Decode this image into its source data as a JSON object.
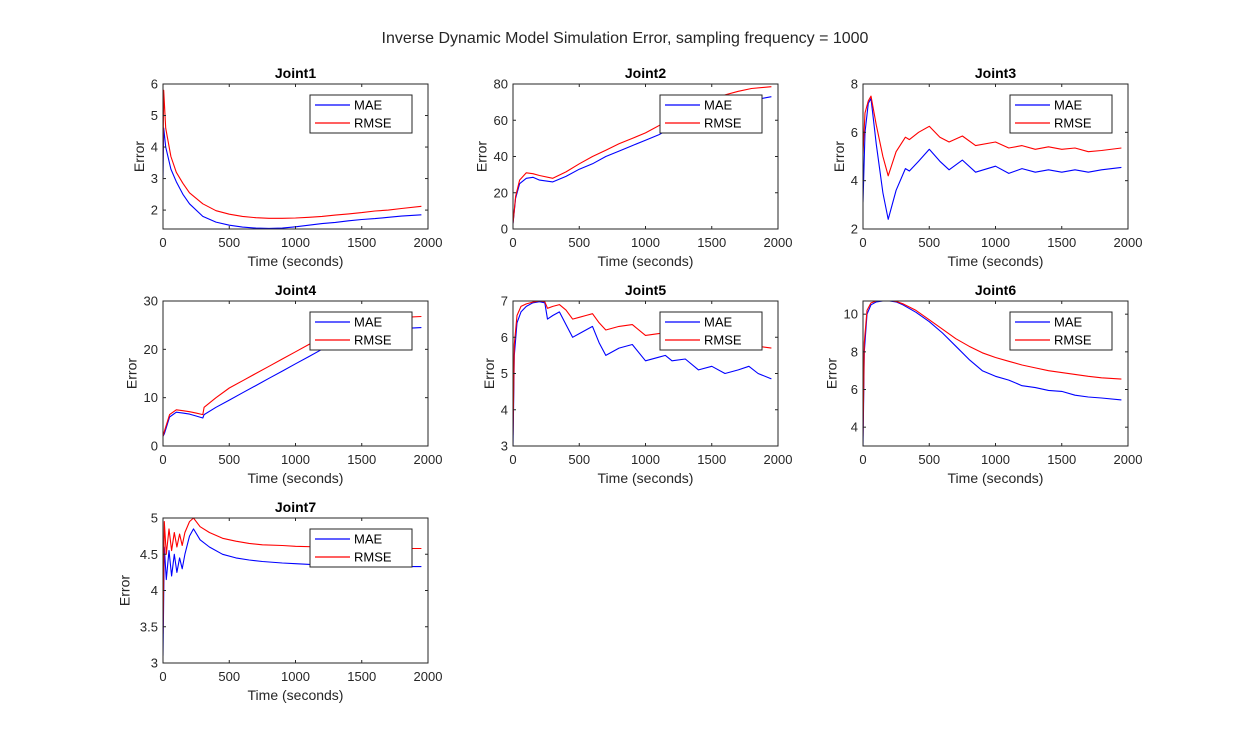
{
  "figure": {
    "title": "Inverse Dynamic Model Simulation Error, sampling frequency = 1000"
  },
  "colors": {
    "MAE": "#0000ff",
    "RMSE": "#ff0000",
    "axis": "#262626"
  },
  "chart_data": [
    {
      "type": "line",
      "title": "Joint1",
      "xlabel": "Time (seconds)",
      "ylabel": "Error",
      "xlim": [
        0,
        2000
      ],
      "ylim": [
        1.4,
        6
      ],
      "xticks": [
        "0",
        "500",
        "1000",
        "1500",
        "2000"
      ],
      "yticks": [
        "2",
        "3",
        "4",
        "5",
        "6"
      ],
      "legend": {
        "position": "top-right",
        "entries": [
          "MAE",
          "RMSE"
        ]
      },
      "series": [
        {
          "name": "MAE",
          "color": "#0000ff",
          "x": [
            0,
            5,
            20,
            60,
            100,
            150,
            200,
            300,
            400,
            500,
            600,
            700,
            800,
            900,
            1000,
            1100,
            1200,
            1300,
            1400,
            1500,
            1600,
            1700,
            1800,
            1950
          ],
          "y": [
            3.0,
            4.6,
            4.0,
            3.3,
            2.9,
            2.5,
            2.2,
            1.8,
            1.62,
            1.52,
            1.46,
            1.43,
            1.42,
            1.43,
            1.47,
            1.52,
            1.57,
            1.61,
            1.66,
            1.7,
            1.73,
            1.77,
            1.81,
            1.85
          ]
        },
        {
          "name": "RMSE",
          "color": "#ff0000",
          "x": [
            0,
            5,
            20,
            60,
            100,
            150,
            200,
            300,
            400,
            500,
            600,
            700,
            800,
            900,
            1000,
            1100,
            1200,
            1300,
            1400,
            1500,
            1600,
            1700,
            1800,
            1950
          ],
          "y": [
            3.6,
            5.8,
            4.6,
            3.7,
            3.2,
            2.85,
            2.55,
            2.2,
            1.98,
            1.87,
            1.8,
            1.76,
            1.74,
            1.74,
            1.75,
            1.77,
            1.8,
            1.84,
            1.88,
            1.92,
            1.97,
            2.0,
            2.05,
            2.12
          ]
        }
      ]
    },
    {
      "type": "line",
      "title": "Joint2",
      "xlabel": "Time (seconds)",
      "ylabel": "Error",
      "xlim": [
        0,
        2000
      ],
      "ylim": [
        0,
        80
      ],
      "xticks": [
        "0",
        "500",
        "1000",
        "1500",
        "2000"
      ],
      "yticks": [
        "0",
        "20",
        "40",
        "60",
        "80"
      ],
      "legend": {
        "position": "top-right",
        "entries": [
          "MAE",
          "RMSE"
        ]
      },
      "series": [
        {
          "name": "MAE",
          "color": "#0000ff",
          "x": [
            0,
            20,
            50,
            100,
            150,
            200,
            300,
            400,
            500,
            600,
            700,
            800,
            900,
            1000,
            1100,
            1200,
            1300,
            1400,
            1500,
            1600,
            1700,
            1800,
            1950
          ],
          "y": [
            3,
            17,
            25,
            28,
            28.5,
            27,
            26,
            29,
            33,
            36,
            40,
            43,
            46,
            49,
            52,
            56,
            59,
            62,
            65,
            67,
            69,
            71,
            73
          ]
        },
        {
          "name": "RMSE",
          "color": "#ff0000",
          "x": [
            0,
            20,
            50,
            100,
            150,
            200,
            300,
            400,
            500,
            600,
            700,
            800,
            900,
            1000,
            1100,
            1200,
            1300,
            1400,
            1500,
            1600,
            1700,
            1800,
            1950
          ],
          "y": [
            3,
            18,
            27,
            31,
            30.5,
            29.5,
            28,
            31.5,
            36,
            40,
            43.5,
            47,
            50,
            53,
            57,
            61,
            65,
            68,
            72,
            74,
            76,
            77.5,
            78.5
          ]
        }
      ]
    },
    {
      "type": "line",
      "title": "Joint3",
      "xlabel": "Time (seconds)",
      "ylabel": "Error",
      "xlim": [
        0,
        2000
      ],
      "ylim": [
        2,
        8
      ],
      "xticks": [
        "0",
        "500",
        "1000",
        "1500",
        "2000"
      ],
      "yticks": [
        "2",
        "4",
        "6",
        "8"
      ],
      "legend": {
        "position": "top-right",
        "entries": [
          "MAE",
          "RMSE"
        ]
      },
      "series": [
        {
          "name": "MAE",
          "color": "#0000ff",
          "x": [
            0,
            15,
            40,
            60,
            100,
            150,
            190,
            250,
            320,
            350,
            420,
            500,
            580,
            650,
            750,
            850,
            1000,
            1100,
            1200,
            1300,
            1400,
            1500,
            1600,
            1700,
            1800,
            1950
          ],
          "y": [
            3.1,
            6.0,
            7.2,
            7.4,
            5.5,
            3.5,
            2.4,
            3.6,
            4.5,
            4.4,
            4.8,
            5.3,
            4.8,
            4.45,
            4.85,
            4.35,
            4.6,
            4.3,
            4.5,
            4.35,
            4.45,
            4.35,
            4.45,
            4.35,
            4.45,
            4.55
          ]
        },
        {
          "name": "RMSE",
          "color": "#ff0000",
          "x": [
            0,
            15,
            40,
            60,
            100,
            150,
            190,
            250,
            320,
            350,
            420,
            500,
            580,
            650,
            750,
            850,
            1000,
            1100,
            1200,
            1300,
            1400,
            1500,
            1600,
            1700,
            1800,
            1950
          ],
          "y": [
            5.1,
            6.8,
            7.3,
            7.5,
            6.3,
            5.0,
            4.2,
            5.2,
            5.8,
            5.7,
            6.0,
            6.25,
            5.8,
            5.6,
            5.85,
            5.45,
            5.6,
            5.35,
            5.45,
            5.3,
            5.4,
            5.3,
            5.35,
            5.2,
            5.25,
            5.35
          ]
        }
      ]
    },
    {
      "type": "line",
      "title": "Joint4",
      "xlabel": "Time (seconds)",
      "ylabel": "Error",
      "xlim": [
        0,
        2000
      ],
      "ylim": [
        0,
        30
      ],
      "xticks": [
        "0",
        "500",
        "1000",
        "1500",
        "2000"
      ],
      "yticks": [
        "0",
        "10",
        "20",
        "30"
      ],
      "legend": {
        "position": "top-right",
        "entries": [
          "MAE",
          "RMSE"
        ]
      },
      "series": [
        {
          "name": "MAE",
          "color": "#0000ff",
          "x": [
            0,
            10,
            50,
            100,
            150,
            200,
            250,
            300,
            310,
            400,
            500,
            600,
            700,
            800,
            900,
            1000,
            1100,
            1200,
            1300,
            1400,
            1500,
            1600,
            1700,
            1800,
            1950
          ],
          "y": [
            2,
            2.5,
            6,
            7,
            6.8,
            6.6,
            6.2,
            5.8,
            6.5,
            8,
            9.5,
            11,
            12.5,
            14,
            15.5,
            17,
            18.5,
            20,
            21,
            22,
            22.8,
            23.5,
            24,
            24.3,
            24.5
          ]
        },
        {
          "name": "RMSE",
          "color": "#ff0000",
          "x": [
            0,
            10,
            50,
            100,
            150,
            200,
            250,
            300,
            310,
            400,
            500,
            600,
            700,
            800,
            900,
            1000,
            1100,
            1200,
            1300,
            1400,
            1500,
            1600,
            1700,
            1800,
            1950
          ],
          "y": [
            2,
            3,
            6.5,
            7.5,
            7.3,
            7.1,
            6.8,
            6.5,
            8,
            10,
            12,
            13.5,
            15,
            16.5,
            18,
            19.5,
            21,
            22.5,
            23.5,
            24.5,
            25.3,
            26,
            26.3,
            26.6,
            26.8
          ]
        }
      ]
    },
    {
      "type": "line",
      "title": "Joint5",
      "xlabel": "Time (seconds)",
      "ylabel": "Error",
      "xlim": [
        0,
        2000
      ],
      "ylim": [
        3,
        7
      ],
      "xticks": [
        "0",
        "500",
        "1000",
        "1500",
        "2000"
      ],
      "yticks": [
        "3",
        "4",
        "5",
        "6",
        "7"
      ],
      "legend": {
        "position": "top-right",
        "entries": [
          "MAE",
          "RMSE"
        ]
      },
      "series": [
        {
          "name": "MAE",
          "color": "#0000ff",
          "x": [
            0,
            10,
            30,
            60,
            100,
            150,
            200,
            240,
            260,
            300,
            350,
            400,
            450,
            500,
            550,
            600,
            650,
            700,
            800,
            900,
            1000,
            1100,
            1150,
            1200,
            1300,
            1400,
            1500,
            1600,
            1700,
            1780,
            1850,
            1950
          ],
          "y": [
            3.0,
            5.5,
            6.4,
            6.7,
            6.85,
            6.95,
            6.98,
            6.95,
            6.5,
            6.6,
            6.7,
            6.35,
            6.0,
            6.1,
            6.2,
            6.3,
            5.85,
            5.5,
            5.7,
            5.8,
            5.35,
            5.45,
            5.5,
            5.35,
            5.4,
            5.1,
            5.2,
            5.0,
            5.1,
            5.2,
            5.0,
            4.85
          ]
        },
        {
          "name": "RMSE",
          "color": "#ff0000",
          "x": [
            0,
            10,
            30,
            60,
            100,
            150,
            200,
            240,
            260,
            300,
            350,
            400,
            450,
            500,
            550,
            600,
            650,
            700,
            800,
            900,
            1000,
            1100,
            1150,
            1200,
            1300,
            1400,
            1500,
            1600,
            1700,
            1780,
            1850,
            1950
          ],
          "y": [
            3.3,
            5.8,
            6.6,
            6.85,
            6.92,
            6.97,
            7.0,
            6.98,
            6.8,
            6.85,
            6.9,
            6.75,
            6.5,
            6.55,
            6.6,
            6.65,
            6.4,
            6.2,
            6.3,
            6.35,
            6.05,
            6.1,
            6.15,
            6.0,
            6.0,
            5.85,
            5.9,
            5.8,
            5.85,
            5.9,
            5.75,
            5.7
          ]
        }
      ]
    },
    {
      "type": "line",
      "title": "Joint6",
      "xlabel": "Time (seconds)",
      "ylabel": "Error",
      "xlim": [
        0,
        2000
      ],
      "ylim": [
        3,
        10.7
      ],
      "xticks": [
        "0",
        "500",
        "1000",
        "1500",
        "2000"
      ],
      "yticks": [
        "4",
        "6",
        "8",
        "10"
      ],
      "legend": {
        "position": "top-right",
        "entries": [
          "MAE",
          "RMSE"
        ]
      },
      "series": [
        {
          "name": "MAE",
          "color": "#0000ff",
          "x": [
            0,
            10,
            30,
            60,
            100,
            150,
            200,
            250,
            300,
            400,
            500,
            600,
            700,
            800,
            900,
            1000,
            1100,
            1200,
            1300,
            1400,
            1500,
            1600,
            1700,
            1800,
            1950
          ],
          "y": [
            3.0,
            8.0,
            10.0,
            10.5,
            10.65,
            10.7,
            10.7,
            10.65,
            10.5,
            10.1,
            9.6,
            9.0,
            8.3,
            7.6,
            7.0,
            6.7,
            6.5,
            6.2,
            6.1,
            5.95,
            5.9,
            5.7,
            5.6,
            5.55,
            5.45
          ]
        },
        {
          "name": "RMSE",
          "color": "#ff0000",
          "x": [
            0,
            10,
            30,
            60,
            100,
            150,
            200,
            250,
            300,
            400,
            500,
            600,
            700,
            800,
            900,
            1000,
            1100,
            1200,
            1300,
            1400,
            1500,
            1600,
            1700,
            1800,
            1950
          ],
          "y": [
            3.5,
            8.5,
            10.2,
            10.6,
            10.7,
            10.72,
            10.72,
            10.68,
            10.55,
            10.2,
            9.7,
            9.2,
            8.7,
            8.3,
            7.95,
            7.7,
            7.5,
            7.3,
            7.15,
            7.0,
            6.9,
            6.8,
            6.7,
            6.62,
            6.55
          ]
        }
      ]
    },
    {
      "type": "line",
      "title": "Joint7",
      "xlabel": "Time (seconds)",
      "ylabel": "Error",
      "xlim": [
        0,
        2000
      ],
      "ylim": [
        3,
        5
      ],
      "xticks": [
        "0",
        "500",
        "1000",
        "1500",
        "2000"
      ],
      "yticks": [
        "3",
        "3.5",
        "4",
        "4.5",
        "5"
      ],
      "legend": {
        "position": "top-right",
        "entries": [
          "MAE",
          "RMSE"
        ]
      },
      "series": [
        {
          "name": "MAE",
          "color": "#0000ff",
          "x": [
            0,
            10,
            25,
            45,
            65,
            85,
            105,
            125,
            145,
            165,
            200,
            230,
            280,
            350,
            450,
            550,
            650,
            750,
            900,
            1000,
            1200,
            1400,
            1600,
            1800,
            1950
          ],
          "y": [
            3.1,
            4.6,
            4.15,
            4.55,
            4.2,
            4.5,
            4.25,
            4.45,
            4.3,
            4.5,
            4.75,
            4.85,
            4.7,
            4.6,
            4.5,
            4.45,
            4.42,
            4.4,
            4.38,
            4.37,
            4.35,
            4.34,
            4.34,
            4.33,
            4.33
          ]
        },
        {
          "name": "RMSE",
          "color": "#ff0000",
          "x": [
            0,
            10,
            25,
            45,
            65,
            85,
            105,
            125,
            145,
            165,
            200,
            230,
            280,
            350,
            450,
            550,
            650,
            750,
            900,
            1000,
            1200,
            1400,
            1600,
            1800,
            1950
          ],
          "y": [
            3.4,
            4.95,
            4.5,
            4.85,
            4.55,
            4.8,
            4.6,
            4.78,
            4.62,
            4.8,
            4.95,
            5.0,
            4.88,
            4.8,
            4.72,
            4.68,
            4.65,
            4.63,
            4.62,
            4.61,
            4.6,
            4.59,
            4.59,
            4.58,
            4.58
          ]
        }
      ]
    }
  ]
}
